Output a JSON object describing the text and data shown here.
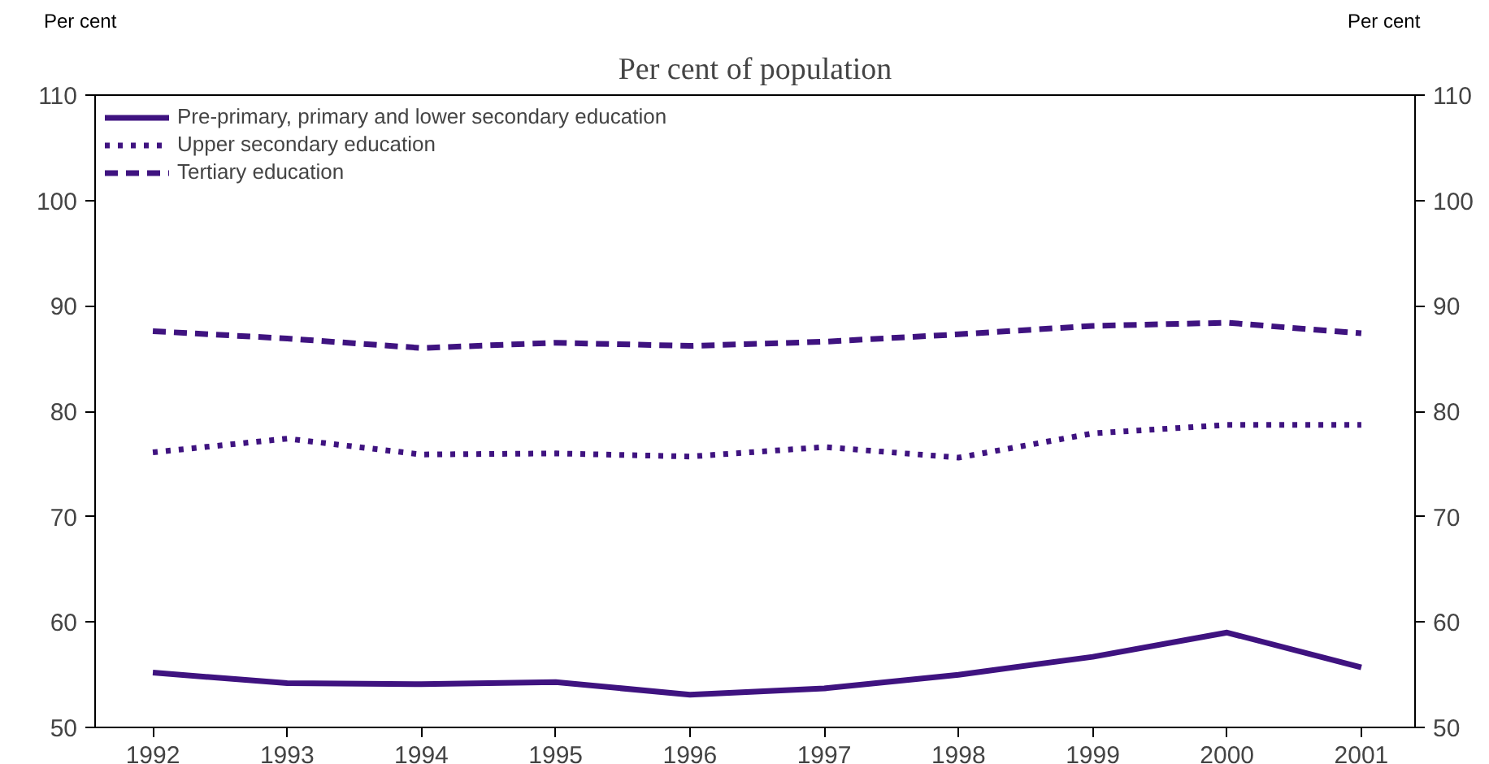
{
  "chart_data": {
    "type": "line",
    "title": "Per cent of population",
    "ylabel": "Per cent",
    "y2label": "Per cent",
    "x": [
      1992,
      1993,
      1994,
      1995,
      1996,
      1997,
      1998,
      1999,
      2000,
      2001
    ],
    "xlim": [
      1991.57,
      2001.4
    ],
    "xticks": [
      1992,
      1993,
      1994,
      1995,
      1996,
      1997,
      1998,
      1999,
      2000,
      2001
    ],
    "ylim": [
      50,
      110
    ],
    "yticks": [
      50,
      60,
      70,
      80,
      90,
      100,
      110
    ],
    "y2lim": [
      50,
      110
    ],
    "y2ticks": [
      50,
      60,
      70,
      80,
      90,
      100,
      110
    ],
    "grid": false,
    "legend": "top left",
    "marker": "none",
    "series": [
      {
        "name": "Pre-primary, primary and lower secondary education",
        "color": "#3f1380",
        "line_style": "solid",
        "values": [
          55.2,
          54.2,
          54.1,
          54.3,
          53.1,
          53.7,
          55.0,
          56.7,
          59.0,
          55.7
        ]
      },
      {
        "name": "Upper secondary education",
        "color": "#3f1380",
        "line_style": "dotted",
        "values": [
          76.1,
          77.4,
          75.9,
          76.0,
          75.7,
          76.6,
          75.6,
          77.9,
          78.7,
          78.7
        ]
      },
      {
        "name": "Tertiary education",
        "color": "#3f1380",
        "line_style": "dashed",
        "values": [
          87.6,
          86.9,
          86.0,
          86.5,
          86.2,
          86.6,
          87.3,
          88.1,
          88.4,
          87.4
        ]
      }
    ]
  }
}
